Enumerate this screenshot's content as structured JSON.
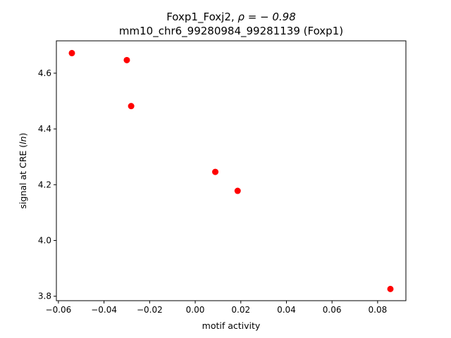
{
  "chart_data": {
    "type": "scatter",
    "title_line1_prefix": "Foxp1_Foxj2, ",
    "title_line1_rho": "ρ = − 0.98",
    "title_line2": "mm10_chr6_99280984_99281139 (Foxp1)",
    "xlabel": "motif activity",
    "ylabel_prefix": "signal at CRE (",
    "ylabel_italic": "ln",
    "ylabel_suffix": ")",
    "xlim": [
      -0.0609,
      0.0924
    ],
    "ylim": [
      3.784,
      4.716
    ],
    "xticks": [
      -0.06,
      -0.04,
      -0.02,
      0.0,
      0.02,
      0.04,
      0.06,
      0.08
    ],
    "xtick_labels": [
      "−0.06",
      "−0.04",
      "−0.02",
      "0.00",
      "0.02",
      "0.04",
      "0.06",
      "0.08"
    ],
    "yticks": [
      3.8,
      4.0,
      4.2,
      4.4,
      4.6
    ],
    "ytick_labels": [
      "3.8",
      "4.0",
      "4.2",
      "4.4",
      "4.6"
    ],
    "grid": false,
    "marker_color": "#ff0000",
    "points": [
      {
        "x": -0.0541,
        "y": 4.672
      },
      {
        "x": -0.03,
        "y": 4.647
      },
      {
        "x": -0.0281,
        "y": 4.482
      },
      {
        "x": 0.0088,
        "y": 4.246
      },
      {
        "x": 0.0186,
        "y": 4.178
      },
      {
        "x": 0.0856,
        "y": 3.826
      }
    ]
  }
}
